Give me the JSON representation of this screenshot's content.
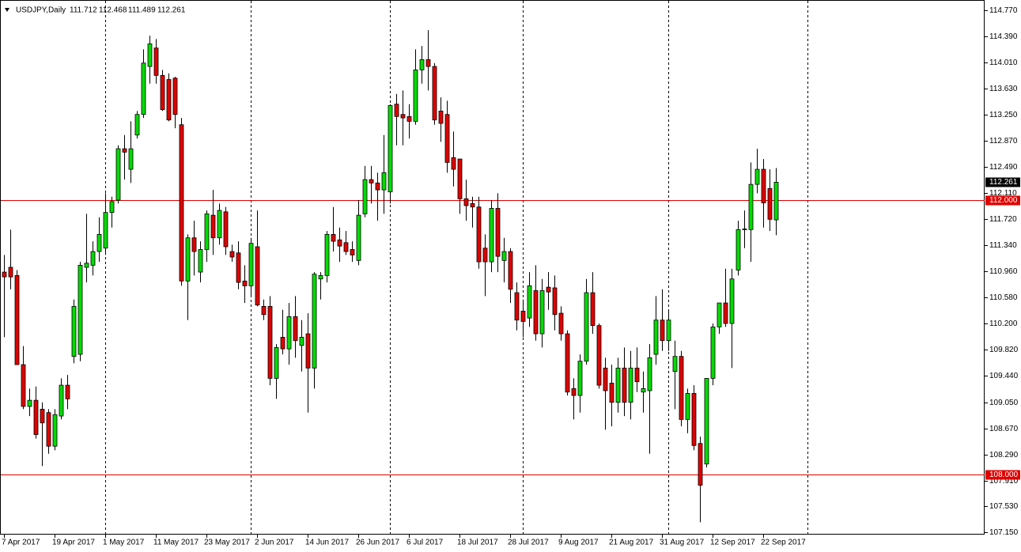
{
  "chart_data": {
    "type": "candlestick",
    "title": "USDJPY,Daily",
    "categories": [
      "7 Apr 2017",
      null,
      null,
      null,
      null,
      null,
      null,
      null,
      "19 Apr 2017",
      null,
      null,
      null,
      null,
      null,
      null,
      null,
      "1 May 2017",
      null,
      null,
      null,
      null,
      null,
      null,
      null,
      "11 May 2017",
      null,
      null,
      null,
      null,
      null,
      null,
      null,
      "23 May 2017",
      null,
      null,
      null,
      null,
      null,
      null,
      null,
      "2 Jun 2017",
      null,
      null,
      null,
      null,
      null,
      null,
      null,
      "14 Jun 2017",
      null,
      null,
      null,
      null,
      null,
      null,
      null,
      "26 Jun 2017",
      null,
      null,
      null,
      null,
      null,
      null,
      null,
      "6 Jul 2017",
      null,
      null,
      null,
      null,
      null,
      null,
      null,
      "18 Jul 2017",
      null,
      null,
      null,
      null,
      null,
      null,
      null,
      "28 Jul 2017",
      null,
      null,
      null,
      null,
      null,
      null,
      null,
      "9 Aug 2017",
      null,
      null,
      null,
      null,
      null,
      null,
      null,
      "21 Aug 2017",
      null,
      null,
      null,
      null,
      null,
      null,
      null,
      "31 Aug 2017",
      null,
      null,
      null,
      null,
      null,
      null,
      null,
      "12 Sep 2017",
      null,
      null,
      null,
      null,
      null,
      null,
      null,
      "22 Sep 2017",
      null,
      null
    ],
    "open": [
      110.95,
      111.02,
      110.9,
      109.6,
      108.99,
      109.08,
      108.95,
      108.9,
      108.41,
      108.85,
      109.3,
      109.72,
      109.75,
      111.02,
      111.05,
      111.25,
      111.3,
      111.82,
      112.0,
      112.75,
      112.45,
      112.95,
      113.25,
      113.95,
      114.22,
      113.82,
      113.76,
      113.78,
      113.1,
      110.82,
      111.45,
      110.95,
      111.28,
      111.78,
      111.45,
      111.83,
      111.25,
      111.23,
      110.82,
      110.75,
      111.32,
      110.45,
      110.45,
      109.4,
      110.0,
      109.83,
      110.3,
      109.88,
      110.05,
      109.55,
      110.85,
      110.9,
      111.5,
      111.42,
      111.38,
      111.28,
      111.12,
      111.8,
      112.3,
      112.25,
      112.15,
      112.12,
      113.4,
      113.25,
      113.22,
      113.15,
      113.9,
      114.05,
      113.95,
      113.3,
      113.25,
      112.62,
      112.6,
      112.02,
      111.95,
      111.9,
      111.3,
      111.1,
      111.88,
      111.12,
      111.25,
      110.65,
      110.38,
      110.28,
      110.68,
      110.05,
      110.73,
      110.72,
      110.35,
      110.05,
      109.25,
      109.15,
      109.65,
      110.65,
      110.17,
      109.55,
      109.33,
      109.05,
      109.55,
      109.05,
      109.55,
      109.2,
      109.22,
      109.75,
      110.25,
      109.95,
      109.5,
      109.72,
      108.8,
      109.18,
      108.45,
      108.15,
      109.4,
      110.15,
      110.5,
      110.2,
      110.98,
      111.57,
      111.57,
      112.23,
      112.45,
      112.17,
      111.712
    ],
    "high": [
      111.2,
      111.57,
      110.98,
      109.87,
      109.25,
      109.28,
      109.05,
      108.95,
      108.95,
      109.4,
      109.45,
      110.55,
      111.1,
      111.8,
      111.4,
      111.75,
      112.1,
      112.05,
      112.8,
      112.95,
      113.15,
      113.3,
      114.2,
      114.4,
      114.35,
      113.9,
      113.85,
      113.8,
      113.2,
      111.5,
      111.7,
      111.4,
      111.85,
      112.15,
      111.95,
      111.9,
      111.35,
      111.4,
      111.05,
      111.45,
      111.85,
      110.55,
      110.6,
      109.9,
      110.4,
      110.5,
      110.6,
      110.25,
      110.35,
      110.95,
      110.95,
      111.55,
      111.9,
      111.6,
      111.55,
      111.4,
      112.0,
      112.5,
      112.5,
      112.4,
      112.95,
      113.4,
      113.55,
      113.6,
      113.4,
      114.2,
      114.25,
      114.48,
      114.0,
      113.5,
      113.45,
      113.0,
      112.6,
      112.3,
      112.05,
      112.05,
      111.5,
      112.0,
      112.1,
      111.45,
      111.3,
      110.8,
      110.55,
      110.95,
      111.05,
      110.85,
      110.95,
      110.9,
      110.45,
      110.1,
      109.4,
      109.75,
      110.85,
      110.95,
      110.2,
      109.7,
      109.6,
      109.7,
      109.85,
      109.8,
      109.85,
      109.5,
      109.9,
      110.6,
      110.7,
      110.4,
      109.95,
      109.8,
      109.25,
      109.3,
      108.55,
      109.4,
      110.2,
      110.5,
      111.0,
      111.0,
      111.7,
      111.85,
      112.55,
      112.75,
      112.6,
      112.45,
      112.468
    ],
    "low": [
      110.0,
      110.7,
      109.6,
      108.95,
      108.85,
      108.52,
      108.12,
      108.3,
      108.35,
      108.8,
      108.95,
      109.62,
      109.65,
      110.8,
      110.9,
      111.1,
      111.2,
      111.6,
      111.95,
      112.3,
      112.25,
      112.9,
      113.2,
      113.7,
      113.7,
      113.3,
      113.15,
      113.05,
      110.75,
      110.25,
      110.9,
      110.8,
      111.1,
      111.2,
      111.35,
      111.2,
      111.1,
      110.7,
      110.5,
      110.6,
      110.45,
      110.25,
      109.3,
      109.1,
      109.75,
      109.6,
      109.7,
      109.5,
      108.9,
      109.25,
      110.55,
      110.8,
      111.25,
      111.1,
      111.2,
      111.1,
      111.05,
      111.75,
      111.95,
      111.7,
      111.8,
      111.95,
      112.8,
      112.8,
      112.9,
      113.1,
      113.7,
      113.6,
      113.1,
      112.85,
      112.4,
      112.2,
      111.8,
      111.7,
      111.6,
      111.0,
      110.6,
      110.95,
      110.95,
      110.8,
      110.5,
      110.1,
      110.0,
      110.15,
      109.95,
      109.85,
      110.4,
      110.1,
      109.95,
      109.15,
      108.8,
      108.9,
      109.6,
      110.05,
      109.25,
      108.65,
      108.7,
      108.9,
      108.85,
      108.8,
      109.2,
      108.9,
      108.3,
      109.6,
      109.8,
      109.8,
      108.95,
      108.7,
      108.6,
      108.35,
      107.3,
      108.1,
      109.3,
      110.05,
      110.15,
      109.55,
      110.9,
      111.3,
      111.1,
      112.1,
      111.6,
      111.55,
      111.489
    ],
    "close": [
      110.88,
      110.88,
      109.6,
      108.99,
      109.08,
      108.58,
      108.75,
      108.41,
      108.87,
      109.3,
      109.1,
      110.45,
      111.05,
      111.08,
      111.25,
      111.5,
      111.82,
      111.98,
      112.75,
      112.7,
      112.75,
      113.25,
      114.0,
      114.28,
      113.82,
      113.32,
      113.17,
      113.25,
      110.82,
      111.45,
      111.25,
      111.28,
      111.8,
      111.45,
      111.85,
      111.32,
      111.17,
      110.8,
      110.75,
      111.37,
      110.47,
      110.33,
      109.4,
      109.85,
      109.83,
      110.3,
      109.95,
      110.0,
      109.55,
      110.92,
      110.9,
      111.5,
      111.4,
      111.33,
      111.25,
      111.2,
      111.78,
      112.3,
      112.25,
      112.15,
      112.4,
      113.38,
      113.22,
      113.2,
      113.15,
      113.9,
      114.05,
      113.95,
      113.17,
      113.12,
      112.55,
      112.45,
      112.02,
      111.92,
      111.9,
      111.1,
      111.1,
      111.88,
      111.18,
      111.25,
      110.7,
      110.25,
      110.23,
      110.75,
      110.05,
      110.68,
      110.66,
      110.33,
      110.05,
      109.2,
      109.15,
      109.65,
      110.65,
      110.17,
      109.3,
      109.22,
      109.05,
      109.55,
      109.05,
      109.55,
      109.35,
      109.25,
      109.7,
      110.25,
      109.95,
      110.25,
      109.72,
      108.8,
      109.18,
      108.42,
      107.84,
      109.4,
      110.15,
      110.5,
      110.2,
      110.85,
      111.57,
      111.58,
      112.23,
      112.45,
      111.96,
      111.72,
      112.261
    ],
    "up_color": "#00dc00",
    "down_color": "#e00000",
    "ylim": [
      107.12,
      114.92
    ],
    "yticks": [
      {
        "value": 114.77,
        "label": "114.770"
      },
      {
        "value": 114.39,
        "label": "114.390"
      },
      {
        "value": 114.01,
        "label": "114.010"
      },
      {
        "value": 113.63,
        "label": "113.630"
      },
      {
        "value": 113.25,
        "label": "113.250"
      },
      {
        "value": 112.87,
        "label": "112.870"
      },
      {
        "value": 112.49,
        "label": "112.490"
      },
      {
        "value": 112.11,
        "label": "112.110"
      },
      {
        "value": 111.72,
        "label": "111.720"
      },
      {
        "value": 111.34,
        "label": "111.340"
      },
      {
        "value": 110.96,
        "label": "110.960"
      },
      {
        "value": 110.58,
        "label": "110.580"
      },
      {
        "value": 110.2,
        "label": "110.200"
      },
      {
        "value": 109.82,
        "label": "109.820"
      },
      {
        "value": 109.44,
        "label": "109.440"
      },
      {
        "value": 109.05,
        "label": "109.050"
      },
      {
        "value": 108.67,
        "label": "108.670"
      },
      {
        "value": 108.29,
        "label": "108.290"
      },
      {
        "value": 107.91,
        "label": "107.910"
      },
      {
        "value": 107.53,
        "label": "107.530"
      },
      {
        "value": 107.15,
        "label": "107.150"
      }
    ],
    "hlines": [
      {
        "value": 112,
        "label": "112.000"
      },
      {
        "value": 108,
        "label": "108.000"
      }
    ],
    "hline_color": "#e00000"
  }
}
